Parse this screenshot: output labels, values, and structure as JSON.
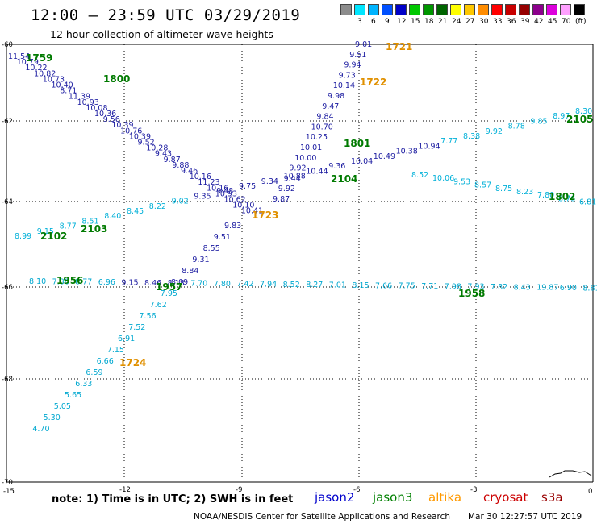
{
  "header": {
    "title": "12:00 – 23:59 UTC 03/29/2019",
    "subtitle": "12 hour collection of altimeter wave heights"
  },
  "legend": {
    "swatches": [
      {
        "color": "#8c8c8c",
        "label": ""
      },
      {
        "color": "#00e6ff",
        "label": "3"
      },
      {
        "color": "#00b4ff",
        "label": "6"
      },
      {
        "color": "#0050ff",
        "label": "9"
      },
      {
        "color": "#0000c8",
        "label": "12"
      },
      {
        "color": "#00c800",
        "label": "15"
      },
      {
        "color": "#009600",
        "label": "18"
      },
      {
        "color": "#006400",
        "label": "21"
      },
      {
        "color": "#ffff00",
        "label": "24"
      },
      {
        "color": "#ffc800",
        "label": "27"
      },
      {
        "color": "#ff8c00",
        "label": "30"
      },
      {
        "color": "#ff0000",
        "label": "33"
      },
      {
        "color": "#c80000",
        "label": "36"
      },
      {
        "color": "#960000",
        "label": "39"
      },
      {
        "color": "#8c008c",
        "label": "42"
      },
      {
        "color": "#dc00dc",
        "label": "45"
      },
      {
        "color": "#ffa0ff",
        "label": "70"
      },
      {
        "color": "#000000",
        "label": "(ft)"
      }
    ]
  },
  "axes": {
    "lon_labels": [
      "-15",
      "-12",
      "-9",
      "-6",
      "-3",
      "0"
    ],
    "lat_labels": [
      "-60",
      "-62",
      "-64",
      "-66",
      "-68",
      "-70"
    ]
  },
  "tracks": {
    "track_a": [
      "11.54",
      "10.79",
      "10.22",
      "10.82",
      "10.73",
      "10.40",
      "8.71",
      "11.39",
      "10.93",
      "10.08",
      "10.36",
      "9.56",
      "10.39",
      "10.76",
      "10.39",
      "9.52",
      "10.28",
      "9.43",
      "9.87",
      "9.88",
      "9.46",
      "10.16",
      "11.23",
      "10.16",
      "10.93",
      "10.62",
      "10.10",
      "10.41",
      "9.83",
      "9.51",
      "8.55",
      "9.31",
      "8.84",
      "8.09",
      "7.95",
      "7.62",
      "7.56",
      "7.52",
      "6.91",
      "7.15",
      "6.66",
      "6.59",
      "6.33",
      "5.65",
      "5.05",
      "5.30",
      "4.70"
    ],
    "track_b": [
      "9.01",
      "9.51",
      "9.94",
      "9.73",
      "10.14",
      "9.98",
      "9.47",
      "9.84",
      "10.70",
      "10.25",
      "10.01",
      "10.00",
      "9.92",
      "9.44",
      "9.92",
      "9.87",
      "8.52",
      "10.06",
      "9.53",
      "8.57",
      "8.75",
      "8.23",
      "7.80",
      "8.76",
      "6.81"
    ],
    "track_c": [
      "8.99",
      "9.15",
      "8.77",
      "8.51",
      "8.40",
      "8.45",
      "8.22",
      "9.02",
      "9.35",
      "9.48",
      "9.75",
      "9.34",
      "10.88",
      "10.44",
      "9.36",
      "10.04",
      "10.49",
      "10.38",
      "10.94",
      "7.77",
      "8.38",
      "9.92",
      "8.78",
      "9.85",
      "8.97",
      "8.30"
    ],
    "track_d": [
      "8.10",
      "7.86",
      "8.77",
      "6.96",
      "9.15",
      "8.46",
      "8.18",
      "7.70",
      "7.80",
      "7.42",
      "7.94",
      "8.52",
      "8.27",
      "7.01",
      "8.15",
      "7.66",
      "7.75",
      "7.71",
      "7.98",
      "7.93",
      "7.82",
      "8.43",
      "19.87",
      "6.90",
      "8.81"
    ]
  },
  "time_labels": {
    "green": [
      "1759",
      "1800",
      "1801",
      "2104",
      "1802",
      "2105",
      "2102",
      "2103",
      "1956",
      "1957",
      "1958"
    ],
    "orange": [
      "1721",
      "1722",
      "1723",
      "1724"
    ]
  },
  "footer": {
    "note": "note:  1) Time is in UTC;  2) SWH is in feet",
    "satellites": [
      {
        "name": "jason2",
        "color": "#0000cc"
      },
      {
        "name": "jason3",
        "color": "#008000"
      },
      {
        "name": "altika",
        "color": "#ff9900"
      },
      {
        "name": "cryosat",
        "color": "#cc0000"
      },
      {
        "name": "s3a",
        "color": "#990000"
      }
    ],
    "credit": "NOAA/NESDIS Center for Satellite Applications and Research",
    "timestamp": "Mar 30 12:27:57 UTC 2019"
  }
}
